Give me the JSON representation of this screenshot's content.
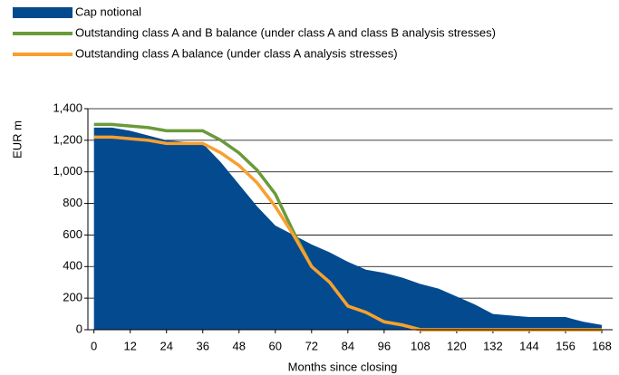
{
  "chart_data": {
    "type": "line",
    "x": [
      0,
      6,
      12,
      18,
      24,
      30,
      36,
      42,
      48,
      54,
      60,
      66,
      72,
      78,
      84,
      90,
      96,
      102,
      108,
      114,
      120,
      126,
      132,
      138,
      144,
      150,
      156,
      162,
      168
    ],
    "series": [
      {
        "name": "Cap notional",
        "style": "area",
        "color": "#044a8f",
        "values": [
          1280,
          1280,
          1260,
          1230,
          1200,
          1190,
          1180,
          1060,
          920,
          780,
          660,
          600,
          540,
          490,
          430,
          380,
          360,
          330,
          290,
          260,
          210,
          160,
          100,
          90,
          80,
          80,
          80,
          50,
          30
        ]
      },
      {
        "name": "Outstanding class A and B balance (under class A and class B analysis stresses)",
        "style": "line",
        "color": "#6a9a3a",
        "values": [
          1300,
          1300,
          1290,
          1280,
          1260,
          1260,
          1260,
          1200,
          1120,
          1010,
          860,
          620,
          400,
          300,
          150,
          110,
          50,
          30,
          0,
          0,
          0,
          0,
          0,
          0,
          0,
          0,
          0,
          0,
          0
        ]
      },
      {
        "name": "Outstanding class A balance (under class A analysis stresses)",
        "style": "line",
        "color": "#f7a030",
        "values": [
          1220,
          1220,
          1210,
          1200,
          1180,
          1180,
          1180,
          1120,
          1040,
          930,
          780,
          600,
          400,
          300,
          150,
          110,
          50,
          30,
          0,
          0,
          0,
          0,
          0,
          0,
          0,
          0,
          0,
          0,
          0
        ]
      }
    ],
    "xlabel": "Months since closing",
    "ylabel": "EUR m",
    "xlim": [
      -2,
      171.6
    ],
    "xticks": [
      0,
      12,
      24,
      36,
      48,
      60,
      72,
      84,
      96,
      108,
      120,
      132,
      144,
      156,
      168
    ],
    "ylim": [
      0,
      1400
    ],
    "yticks": [
      0,
      200,
      400,
      600,
      800,
      {
        "value": 1000,
        "label": "1,000"
      },
      {
        "value": 1200,
        "label": "1,200"
      },
      {
        "value": 1400,
        "label": "1,400"
      }
    ],
    "grid": true
  }
}
